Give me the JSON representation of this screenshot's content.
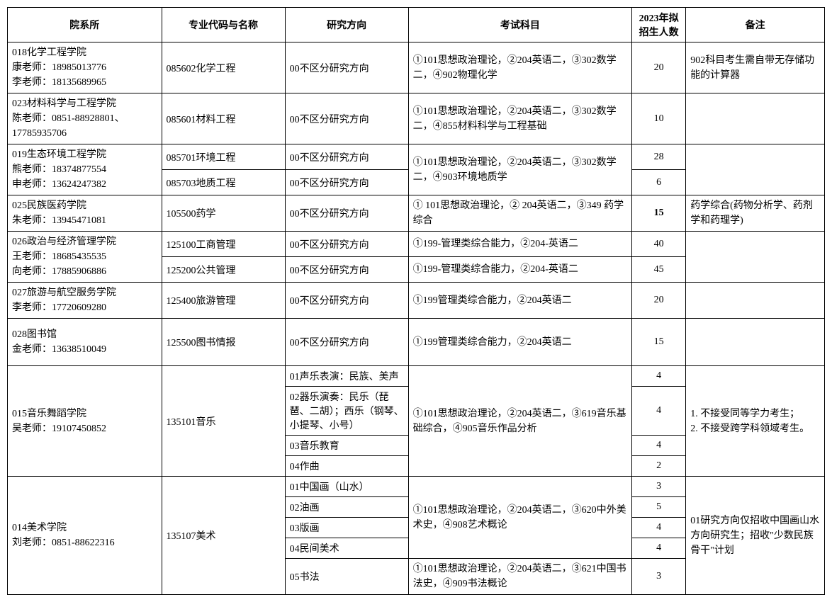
{
  "headers": {
    "dept": "院系所",
    "major": "专业代码与名称",
    "direction": "研究方向",
    "exam": "考试科目",
    "num": "2023年拟招生人数",
    "note": "备注"
  },
  "rows": {
    "r1": {
      "dept": "018化学工程学院\n康老师：18985013776\n李老师：18135689965",
      "major": "085602化学工程",
      "dir": "00不区分研究方向",
      "exam": "①101思想政治理论，②204英语二，③302数学二，④902物理化学",
      "num": "20",
      "note": "902科目考生需自带无存储功能的计算器"
    },
    "r2": {
      "dept": "023材料科学与工程学院\n陈老师：0851-88928801、17785935706",
      "major": "085601材料工程",
      "dir": "00不区分研究方向",
      "exam": "①101思想政治理论，②204英语二，③302数学二，④855材料科学与工程基础",
      "num": "10",
      "note": ""
    },
    "r3": {
      "dept": "019生态环境工程学院\n熊老师：18374877554\n申老师：13624247382",
      "major1": "085701环境工程",
      "dir1": "00不区分研究方向",
      "major2": "085703地质工程",
      "dir2": "00不区分研究方向",
      "exam": "①101思想政治理论，②204英语二，③302数学二，④903环境地质学",
      "num1": "28",
      "num2": "6",
      "note": ""
    },
    "r4": {
      "dept": "025民族医药学院\n朱老师：13945471081",
      "major": "105500药学",
      "dir": "00不区分研究方向",
      "exam": "① 101思想政治理论，② 204英语二，③349 药学综合",
      "num": "15",
      "note": "药学综合(药物分析学、药剂学和药理学)"
    },
    "r5": {
      "dept": "026政治与经济管理学院\n王老师：18685435535\n向老师：17885906886",
      "major1": "125100工商管理",
      "dir1": "00不区分研究方向",
      "exam1": "①199-管理类综合能力，②204-英语二",
      "num1": "40",
      "major2": "125200公共管理",
      "dir2": "00不区分研究方向",
      "exam2": "①199-管理类综合能力，②204-英语二",
      "num2": "45",
      "note": ""
    },
    "r6": {
      "dept": "027旅游与航空服务学院\n李老师：17720609280",
      "major": "125400旅游管理",
      "dir": "00不区分研究方向",
      "exam": "①199管理类综合能力，②204英语二",
      "num": "20",
      "note": ""
    },
    "r7": {
      "dept": "028图书馆\n金老师：13638510049",
      "major": "125500图书情报",
      "dir": "00不区分研究方向",
      "exam": "①199管理类综合能力，②204英语二",
      "num": "15",
      "note": ""
    },
    "r8": {
      "dept": "015音乐舞蹈学院\n吴老师：19107450852",
      "major": "135101音乐",
      "dir1": "01声乐表演：民族、美声",
      "dir2": "02器乐演奏：民乐（琵琶、二胡）；西乐（钢琴、小提琴、小号）",
      "dir3": "03音乐教育",
      "dir4": "04作曲",
      "exam": "①101思想政治理论，②204英语二，③619音乐基础综合，④905音乐作品分析",
      "num1": "4",
      "num2": "4",
      "num3": "4",
      "num4": "2",
      "note": "1. 不接受同等学力考生；\n2. 不接受跨学科领域考生。"
    },
    "r9": {
      "dept": "014美术学院\n刘老师：0851-88622316",
      "major": "135107美术",
      "dir1": "01中国画（山水）",
      "dir2": "02油画",
      "dir3": "03版画",
      "dir4": "04民间美术",
      "dir5": "05书法",
      "exam1": "①101思想政治理论，②204英语二，③620中外美术史，④908艺术概论",
      "exam2": "①101思想政治理论，②204英语二，③621中国书法史，④909书法概论",
      "num1": "3",
      "num2": "5",
      "num3": "4",
      "num4": "4",
      "num5": "3",
      "note": "01研究方向仅招收中国画山水方向研究生；招收\"少数民族骨干\"计划"
    }
  }
}
